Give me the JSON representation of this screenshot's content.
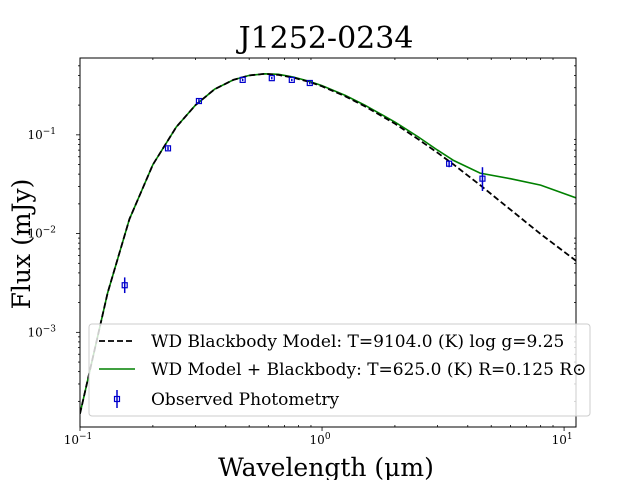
{
  "chart_data": {
    "type": "line",
    "title": "J1252-0234",
    "xlabel": "Wavelength (μm)",
    "ylabel": "Flux (mJy)",
    "xscale": "log",
    "yscale": "log",
    "xlim": [
      0.1,
      11.2
    ],
    "ylim": [
      0.00011,
      0.6
    ],
    "grid": false,
    "legend_position": "lower center",
    "x_ticks": [
      {
        "value": 0.1,
        "base": "10",
        "exp": "−1"
      },
      {
        "value": 1,
        "base": "10",
        "exp": "0"
      },
      {
        "value": 10,
        "base": "10",
        "exp": "1"
      }
    ],
    "y_ticks": [
      {
        "value": 0.001,
        "base": "10",
        "exp": "−3"
      },
      {
        "value": 0.01,
        "base": "10",
        "exp": "−2"
      },
      {
        "value": 0.1,
        "base": "10",
        "exp": "−1"
      }
    ],
    "series": [
      {
        "name": "WD Blackbody Model: T=9104.0 (K) log g=9.25",
        "style": "dashed",
        "color": "#000000",
        "x": [
          0.1,
          0.13,
          0.16,
          0.2,
          0.25,
          0.3,
          0.36,
          0.43,
          0.5,
          0.58,
          0.66,
          0.76,
          0.88,
          1.0,
          1.25,
          1.5,
          2.0,
          2.5,
          3.0,
          3.5,
          4.5,
          6.0,
          8.0,
          11.2
        ],
        "y": [
          0.00015,
          0.0025,
          0.014,
          0.05,
          0.12,
          0.2,
          0.29,
          0.36,
          0.4,
          0.415,
          0.405,
          0.38,
          0.345,
          0.31,
          0.245,
          0.195,
          0.13,
          0.09,
          0.066,
          0.05,
          0.031,
          0.0175,
          0.0099,
          0.0053
        ]
      },
      {
        "name": "WD Model + Blackbody: T=625.0 (K) R=0.125 R⊙",
        "style": "solid",
        "color": "#008000",
        "x": [
          0.1,
          0.13,
          0.16,
          0.2,
          0.25,
          0.3,
          0.36,
          0.43,
          0.5,
          0.58,
          0.66,
          0.76,
          0.88,
          1.0,
          1.25,
          1.5,
          2.0,
          2.5,
          3.0,
          3.5,
          4.5,
          6.0,
          8.0,
          11.2
        ],
        "y": [
          0.00015,
          0.0025,
          0.014,
          0.05,
          0.12,
          0.2,
          0.29,
          0.36,
          0.4,
          0.415,
          0.41,
          0.385,
          0.35,
          0.315,
          0.25,
          0.2,
          0.135,
          0.095,
          0.07,
          0.055,
          0.041,
          0.036,
          0.031,
          0.023
        ]
      }
    ],
    "observed": {
      "name": "Observed Photometry",
      "color": "#0000cc",
      "x": [
        0.153,
        0.231,
        0.31,
        0.47,
        0.62,
        0.75,
        0.89,
        3.35,
        4.6
      ],
      "y": [
        0.003,
        0.073,
        0.22,
        0.36,
        0.375,
        0.36,
        0.335,
        0.051,
        0.036
      ],
      "yerr_low": [
        0.0025,
        0.07,
        0.21,
        0.35,
        0.365,
        0.35,
        0.325,
        0.047,
        0.027
      ],
      "yerr_high": [
        0.0036,
        0.076,
        0.23,
        0.37,
        0.385,
        0.37,
        0.345,
        0.055,
        0.047
      ]
    }
  }
}
